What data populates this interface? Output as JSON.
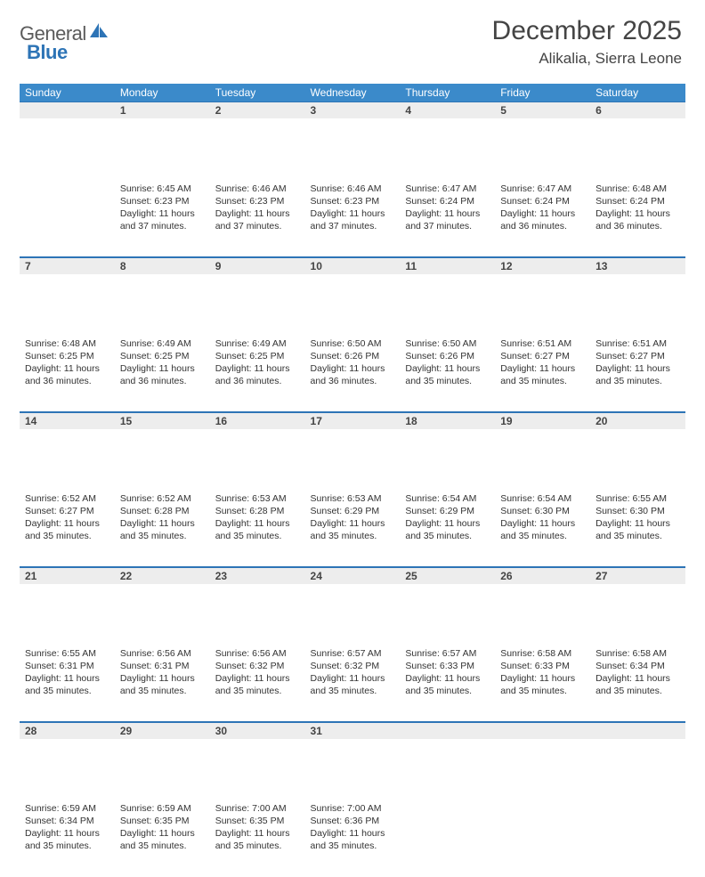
{
  "brand": {
    "word1": "General",
    "word2": "Blue"
  },
  "title": "December 2025",
  "location": "Alikalia, Sierra Leone",
  "colors": {
    "header_bg": "#3b8aca",
    "header_rule": "#2d74b6",
    "daynum_bg": "#ededed",
    "text": "#333333",
    "brand_gray": "#5b5b5b",
    "brand_blue": "#2d74b6"
  },
  "weekdays": [
    "Sunday",
    "Monday",
    "Tuesday",
    "Wednesday",
    "Thursday",
    "Friday",
    "Saturday"
  ],
  "weeks": [
    [
      null,
      {
        "n": "1",
        "sunrise": "6:45 AM",
        "sunset": "6:23 PM",
        "daylight": "11 hours and 37 minutes."
      },
      {
        "n": "2",
        "sunrise": "6:46 AM",
        "sunset": "6:23 PM",
        "daylight": "11 hours and 37 minutes."
      },
      {
        "n": "3",
        "sunrise": "6:46 AM",
        "sunset": "6:23 PM",
        "daylight": "11 hours and 37 minutes."
      },
      {
        "n": "4",
        "sunrise": "6:47 AM",
        "sunset": "6:24 PM",
        "daylight": "11 hours and 37 minutes."
      },
      {
        "n": "5",
        "sunrise": "6:47 AM",
        "sunset": "6:24 PM",
        "daylight": "11 hours and 36 minutes."
      },
      {
        "n": "6",
        "sunrise": "6:48 AM",
        "sunset": "6:24 PM",
        "daylight": "11 hours and 36 minutes."
      }
    ],
    [
      {
        "n": "7",
        "sunrise": "6:48 AM",
        "sunset": "6:25 PM",
        "daylight": "11 hours and 36 minutes."
      },
      {
        "n": "8",
        "sunrise": "6:49 AM",
        "sunset": "6:25 PM",
        "daylight": "11 hours and 36 minutes."
      },
      {
        "n": "9",
        "sunrise": "6:49 AM",
        "sunset": "6:25 PM",
        "daylight": "11 hours and 36 minutes."
      },
      {
        "n": "10",
        "sunrise": "6:50 AM",
        "sunset": "6:26 PM",
        "daylight": "11 hours and 36 minutes."
      },
      {
        "n": "11",
        "sunrise": "6:50 AM",
        "sunset": "6:26 PM",
        "daylight": "11 hours and 35 minutes."
      },
      {
        "n": "12",
        "sunrise": "6:51 AM",
        "sunset": "6:27 PM",
        "daylight": "11 hours and 35 minutes."
      },
      {
        "n": "13",
        "sunrise": "6:51 AM",
        "sunset": "6:27 PM",
        "daylight": "11 hours and 35 minutes."
      }
    ],
    [
      {
        "n": "14",
        "sunrise": "6:52 AM",
        "sunset": "6:27 PM",
        "daylight": "11 hours and 35 minutes."
      },
      {
        "n": "15",
        "sunrise": "6:52 AM",
        "sunset": "6:28 PM",
        "daylight": "11 hours and 35 minutes."
      },
      {
        "n": "16",
        "sunrise": "6:53 AM",
        "sunset": "6:28 PM",
        "daylight": "11 hours and 35 minutes."
      },
      {
        "n": "17",
        "sunrise": "6:53 AM",
        "sunset": "6:29 PM",
        "daylight": "11 hours and 35 minutes."
      },
      {
        "n": "18",
        "sunrise": "6:54 AM",
        "sunset": "6:29 PM",
        "daylight": "11 hours and 35 minutes."
      },
      {
        "n": "19",
        "sunrise": "6:54 AM",
        "sunset": "6:30 PM",
        "daylight": "11 hours and 35 minutes."
      },
      {
        "n": "20",
        "sunrise": "6:55 AM",
        "sunset": "6:30 PM",
        "daylight": "11 hours and 35 minutes."
      }
    ],
    [
      {
        "n": "21",
        "sunrise": "6:55 AM",
        "sunset": "6:31 PM",
        "daylight": "11 hours and 35 minutes."
      },
      {
        "n": "22",
        "sunrise": "6:56 AM",
        "sunset": "6:31 PM",
        "daylight": "11 hours and 35 minutes."
      },
      {
        "n": "23",
        "sunrise": "6:56 AM",
        "sunset": "6:32 PM",
        "daylight": "11 hours and 35 minutes."
      },
      {
        "n": "24",
        "sunrise": "6:57 AM",
        "sunset": "6:32 PM",
        "daylight": "11 hours and 35 minutes."
      },
      {
        "n": "25",
        "sunrise": "6:57 AM",
        "sunset": "6:33 PM",
        "daylight": "11 hours and 35 minutes."
      },
      {
        "n": "26",
        "sunrise": "6:58 AM",
        "sunset": "6:33 PM",
        "daylight": "11 hours and 35 minutes."
      },
      {
        "n": "27",
        "sunrise": "6:58 AM",
        "sunset": "6:34 PM",
        "daylight": "11 hours and 35 minutes."
      }
    ],
    [
      {
        "n": "28",
        "sunrise": "6:59 AM",
        "sunset": "6:34 PM",
        "daylight": "11 hours and 35 minutes."
      },
      {
        "n": "29",
        "sunrise": "6:59 AM",
        "sunset": "6:35 PM",
        "daylight": "11 hours and 35 minutes."
      },
      {
        "n": "30",
        "sunrise": "7:00 AM",
        "sunset": "6:35 PM",
        "daylight": "11 hours and 35 minutes."
      },
      {
        "n": "31",
        "sunrise": "7:00 AM",
        "sunset": "6:36 PM",
        "daylight": "11 hours and 35 minutes."
      },
      null,
      null,
      null
    ]
  ],
  "labels": {
    "sunrise": "Sunrise:",
    "sunset": "Sunset:",
    "daylight": "Daylight:"
  }
}
